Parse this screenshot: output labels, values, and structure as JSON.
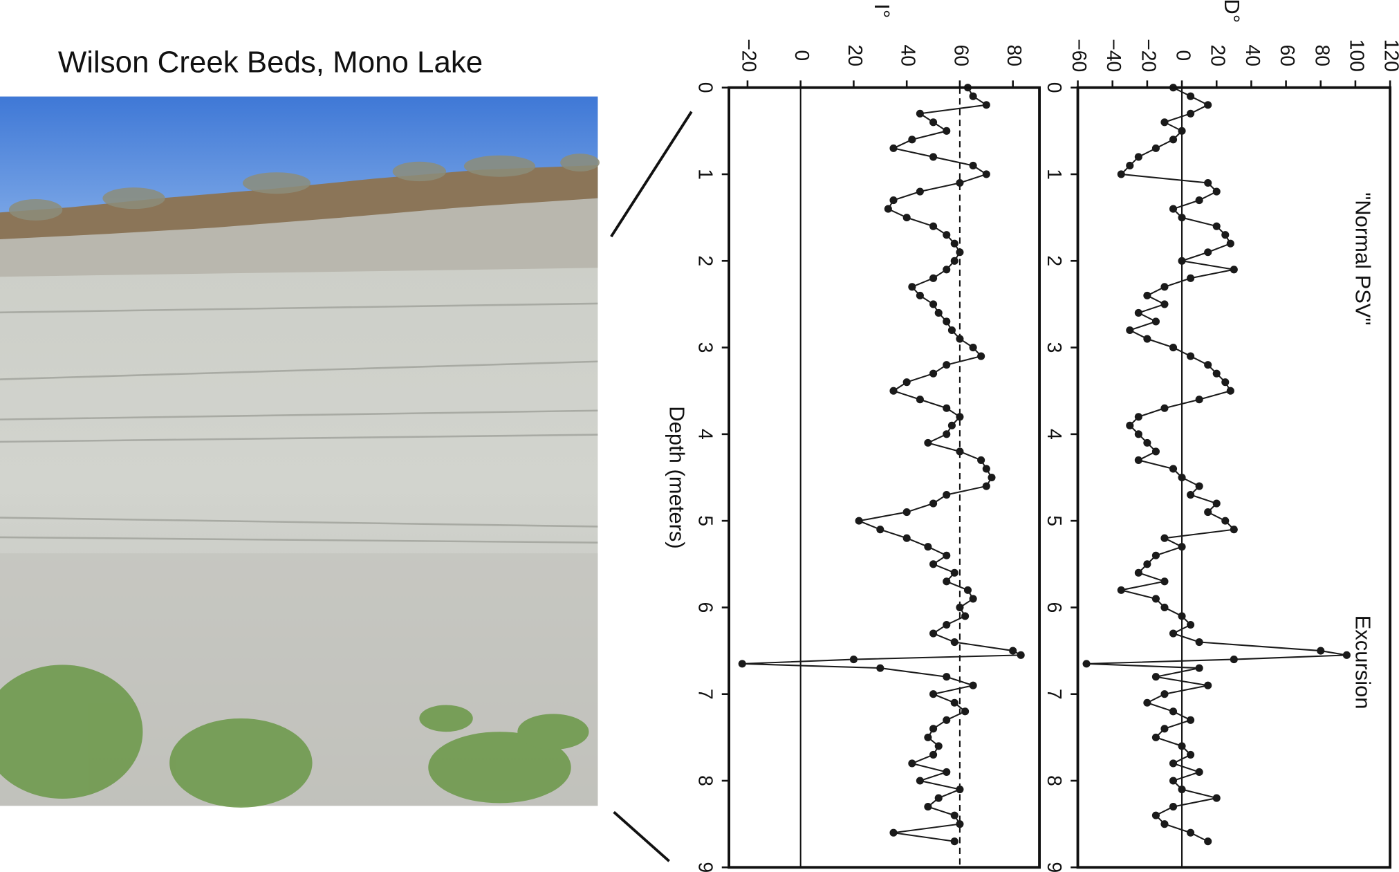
{
  "photo_title": "Wilson Creek Beds, Mono Lake",
  "chart_data": [
    {
      "type": "line",
      "x_label": "Depth (meters)",
      "y_label": "I°",
      "color": "#1a1a1a",
      "markers": true,
      "x": [
        0,
        0.1,
        0.2,
        0.3,
        0.4,
        0.5,
        0.6,
        0.7,
        0.8,
        0.9,
        1,
        1.1,
        1.2,
        1.3,
        1.4,
        1.5,
        1.6,
        1.7,
        1.8,
        1.9,
        2,
        2.1,
        2.2,
        2.3,
        2.4,
        2.5,
        2.6,
        2.7,
        2.8,
        2.9,
        3,
        3.1,
        3.2,
        3.3,
        3.4,
        3.5,
        3.6,
        3.7,
        3.8,
        3.9,
        4,
        4.1,
        4.2,
        4.3,
        4.4,
        4.5,
        4.6,
        4.7,
        4.8,
        4.9,
        5,
        5.1,
        5.2,
        5.3,
        5.4,
        5.5,
        5.6,
        5.7,
        5.8,
        5.9,
        6,
        6.1,
        6.2,
        6.3,
        6.4,
        6.5,
        6.55,
        6.6,
        6.65,
        6.7,
        6.8,
        6.9,
        7,
        7.1,
        7.2,
        7.3,
        7.4,
        7.5,
        7.6,
        7.7,
        7.8,
        7.9,
        8,
        8.1,
        8.2,
        8.3,
        8.4,
        8.5,
        8.6,
        8.7
      ],
      "values": [
        63,
        65,
        70,
        45,
        50,
        55,
        42,
        35,
        50,
        65,
        70,
        60,
        45,
        35,
        33,
        40,
        50,
        55,
        58,
        60,
        58,
        55,
        50,
        42,
        45,
        50,
        52,
        55,
        57,
        60,
        65,
        68,
        55,
        50,
        40,
        35,
        45,
        55,
        60,
        57,
        55,
        48,
        60,
        68,
        70,
        72,
        70,
        55,
        50,
        40,
        22,
        30,
        40,
        48,
        55,
        50,
        58,
        55,
        63,
        65,
        60,
        62,
        55,
        50,
        58,
        80,
        83,
        20,
        -22,
        30,
        55,
        65,
        50,
        58,
        62,
        55,
        50,
        48,
        52,
        50,
        42,
        55,
        45,
        60,
        52,
        48,
        58,
        60,
        35,
        58
      ],
      "xlim": [
        0,
        9
      ],
      "xticks": [
        0,
        1,
        2,
        3,
        4,
        5,
        6,
        7,
        8,
        9
      ],
      "ylim": [
        -27,
        90
      ],
      "yticks": [
        {
          "value": -20,
          "label": "−20"
        },
        0,
        20,
        40,
        60,
        80
      ],
      "reference_lines": [
        {
          "value": 0,
          "style": "solid"
        },
        {
          "value": 60,
          "style": "dashed"
        }
      ]
    },
    {
      "type": "line",
      "y_label": "D°",
      "color": "#1a1a1a",
      "markers": true,
      "annotations": [
        "\"Normal  PSV\"",
        "Excursion"
      ],
      "x": [
        0,
        0.1,
        0.2,
        0.3,
        0.4,
        0.5,
        0.6,
        0.7,
        0.8,
        0.9,
        1,
        1.1,
        1.2,
        1.3,
        1.4,
        1.5,
        1.6,
        1.7,
        1.8,
        1.9,
        2,
        2.1,
        2.2,
        2.3,
        2.4,
        2.5,
        2.6,
        2.7,
        2.8,
        2.9,
        3,
        3.1,
        3.2,
        3.3,
        3.4,
        3.5,
        3.6,
        3.7,
        3.8,
        3.9,
        4,
        4.1,
        4.2,
        4.3,
        4.4,
        4.5,
        4.6,
        4.7,
        4.8,
        4.9,
        5,
        5.1,
        5.2,
        5.3,
        5.4,
        5.5,
        5.6,
        5.7,
        5.8,
        5.9,
        6,
        6.1,
        6.2,
        6.3,
        6.4,
        6.5,
        6.55,
        6.6,
        6.65,
        6.7,
        6.8,
        6.9,
        7,
        7.1,
        7.2,
        7.3,
        7.4,
        7.5,
        7.6,
        7.7,
        7.8,
        7.9,
        8,
        8.1,
        8.2,
        8.3,
        8.4,
        8.5,
        8.6,
        8.7
      ],
      "values": [
        -5,
        5,
        15,
        5,
        -10,
        0,
        -5,
        -15,
        -25,
        -30,
        -35,
        15,
        20,
        10,
        -5,
        0,
        20,
        25,
        28,
        15,
        0,
        30,
        5,
        -10,
        -20,
        -10,
        -25,
        -15,
        -30,
        -20,
        -5,
        5,
        15,
        20,
        25,
        28,
        10,
        -10,
        -25,
        -30,
        -25,
        -20,
        -15,
        -25,
        -5,
        0,
        10,
        5,
        20,
        15,
        25,
        30,
        -10,
        0,
        -15,
        -20,
        -25,
        -10,
        -35,
        -15,
        -10,
        0,
        5,
        -5,
        10,
        80,
        95,
        30,
        -55,
        10,
        -15,
        15,
        -10,
        -20,
        -5,
        5,
        -10,
        -15,
        0,
        5,
        -5,
        10,
        -5,
        0,
        20,
        -5,
        -15,
        -10,
        5,
        15
      ],
      "xlim": [
        0,
        9
      ],
      "xticks": [
        0,
        1,
        2,
        3,
        4,
        5,
        6,
        7,
        8,
        9
      ],
      "ylim": [
        -60,
        120
      ],
      "yticks": [
        {
          "value": -60,
          "label": "−60"
        },
        {
          "value": -40,
          "label": "−40"
        },
        {
          "value": -20,
          "label": "−20"
        },
        0,
        20,
        40,
        60,
        80,
        100,
        120
      ],
      "reference_lines": [
        {
          "value": 0,
          "style": "solid"
        }
      ]
    }
  ]
}
